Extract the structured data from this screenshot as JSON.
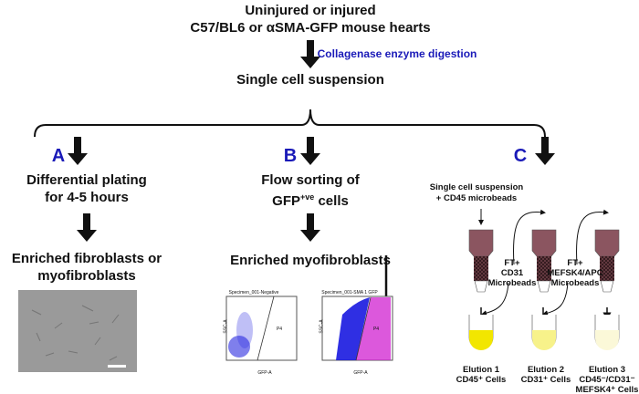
{
  "source": {
    "line1": "Uninjured or injured",
    "line2": "C57/BL6 or αSMA-GFP mouse hearts"
  },
  "digestion": "Collagenase enzyme digestion",
  "single_cell": "Single cell suspension",
  "colors": {
    "blue_label": "#1a1ab8",
    "column": "#8b5560",
    "elution1": "#f2e600",
    "elution2": "#f7f28a",
    "elution3": "#fbf8d8",
    "dots_neg": "#2a2ae0",
    "dots_pos": "#d020d0"
  },
  "branch_a": {
    "label": "A",
    "step": [
      "Differential plating",
      "for 4-5 hours"
    ],
    "result": [
      "Enriched fibroblasts or",
      "myofibroblasts"
    ]
  },
  "branch_b": {
    "label": "B",
    "step": [
      "Flow sorting of",
      "GFP"
    ],
    "step_sup": "+ve",
    "step_tail": " cells",
    "result": "Enriched myofibroblasts",
    "plot1": {
      "title": "Specimen_001-Negative",
      "gate": "P4",
      "xlabel": "GFP-A",
      "ylabel": "SSC-A"
    },
    "plot2": {
      "title": "Specimen_001-SMA 1 GFP",
      "gate": "P4",
      "xlabel": "GFP-A",
      "ylabel": "SSC-A"
    }
  },
  "branch_c": {
    "label": "C",
    "input": [
      "Single cell suspension",
      "+ CD45 microbeads"
    ],
    "ft1": [
      "FT+",
      "CD31",
      "Microbeads"
    ],
    "ft2": [
      "FT+",
      "MEFSK4/APC",
      "Microbeads"
    ],
    "elution1": [
      "Elution 1",
      "CD45⁺ Cells"
    ],
    "elution2": [
      "Elution 2",
      "CD31⁺ Cells"
    ],
    "elution3": [
      "Elution 3",
      "CD45⁻/CD31⁻",
      "MEFSK4⁺ Cells"
    ]
  }
}
